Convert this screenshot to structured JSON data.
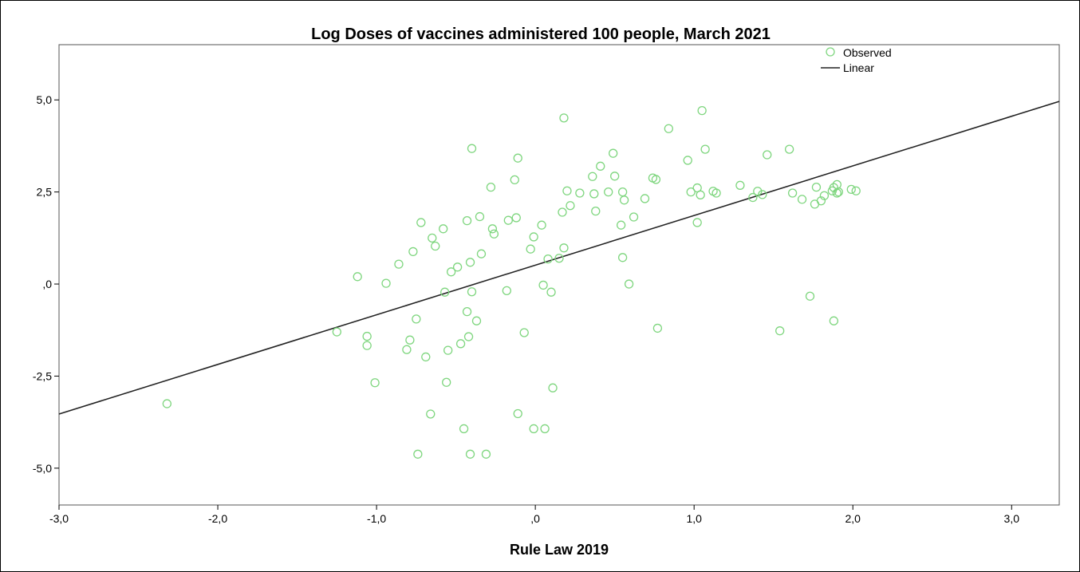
{
  "chart_data": {
    "type": "scatter",
    "title": "Log Doses of vaccines administered 100 people, March 2021",
    "xlabel": "Rule Law 2019",
    "ylabel": "",
    "xlim": [
      -3.0,
      3.3
    ],
    "ylim": [
      -6.0,
      6.5
    ],
    "x_ticks": [
      {
        "value": -3.0,
        "label": "-3,0"
      },
      {
        "value": -2.0,
        "label": "-2,0"
      },
      {
        "value": -1.0,
        "label": "-1,0"
      },
      {
        "value": 0.0,
        "label": ",0"
      },
      {
        "value": 1.0,
        "label": "1,0"
      },
      {
        "value": 2.0,
        "label": "2,0"
      },
      {
        "value": 3.0,
        "label": "3,0"
      }
    ],
    "y_ticks": [
      {
        "value": 5.0,
        "label": "5,0"
      },
      {
        "value": 2.5,
        "label": "2,5"
      },
      {
        "value": 0.0,
        "label": ",0"
      },
      {
        "value": -2.5,
        "label": "-2,5"
      },
      {
        "value": -5.0,
        "label": "-5,0"
      }
    ],
    "grid": false,
    "legend_position": "top-right",
    "series": [
      {
        "name": "Observed",
        "kind": "scatter",
        "color": "#7fd67f",
        "points": [
          [
            -2.32,
            -3.25
          ],
          [
            -1.25,
            -1.3
          ],
          [
            -1.12,
            0.2
          ],
          [
            -1.06,
            -1.42
          ],
          [
            -1.06,
            -1.67
          ],
          [
            -1.01,
            -2.68
          ],
          [
            -0.94,
            0.02
          ],
          [
            -0.86,
            0.54
          ],
          [
            -0.81,
            -1.78
          ],
          [
            -0.79,
            -1.52
          ],
          [
            -0.77,
            0.88
          ],
          [
            -0.75,
            -0.95
          ],
          [
            -0.74,
            -4.62
          ],
          [
            -0.72,
            1.67
          ],
          [
            -0.69,
            -1.98
          ],
          [
            -0.66,
            -3.53
          ],
          [
            -0.65,
            1.25
          ],
          [
            -0.63,
            1.03
          ],
          [
            -0.58,
            1.5
          ],
          [
            -0.57,
            -0.22
          ],
          [
            -0.56,
            -2.67
          ],
          [
            -0.55,
            -1.8
          ],
          [
            -0.53,
            0.33
          ],
          [
            -0.49,
            0.46
          ],
          [
            -0.47,
            -1.62
          ],
          [
            -0.45,
            -3.93
          ],
          [
            -0.43,
            1.72
          ],
          [
            -0.43,
            -0.75
          ],
          [
            -0.42,
            -1.43
          ],
          [
            -0.41,
            -4.62
          ],
          [
            -0.41,
            0.59
          ],
          [
            -0.4,
            3.68
          ],
          [
            -0.4,
            -0.21
          ],
          [
            -0.37,
            -1.0
          ],
          [
            -0.35,
            1.83
          ],
          [
            -0.34,
            0.82
          ],
          [
            -0.31,
            -4.62
          ],
          [
            -0.28,
            2.63
          ],
          [
            -0.27,
            1.5
          ],
          [
            -0.26,
            1.36
          ],
          [
            -0.18,
            -0.18
          ],
          [
            -0.17,
            1.73
          ],
          [
            -0.13,
            2.83
          ],
          [
            -0.12,
            1.8
          ],
          [
            -0.11,
            3.42
          ],
          [
            -0.11,
            -3.52
          ],
          [
            -0.07,
            -1.32
          ],
          [
            -0.03,
            0.95
          ],
          [
            -0.01,
            -3.93
          ],
          [
            -0.01,
            1.28
          ],
          [
            0.04,
            1.6
          ],
          [
            0.05,
            -0.03
          ],
          [
            0.06,
            -3.93
          ],
          [
            0.08,
            0.68
          ],
          [
            0.1,
            -0.22
          ],
          [
            0.11,
            -2.82
          ],
          [
            0.15,
            0.7
          ],
          [
            0.17,
            1.95
          ],
          [
            0.18,
            4.51
          ],
          [
            0.18,
            0.98
          ],
          [
            0.2,
            2.53
          ],
          [
            0.22,
            2.13
          ],
          [
            0.28,
            2.47
          ],
          [
            0.36,
            2.92
          ],
          [
            0.37,
            2.45
          ],
          [
            0.38,
            1.98
          ],
          [
            0.41,
            3.2
          ],
          [
            0.46,
            2.5
          ],
          [
            0.49,
            3.55
          ],
          [
            0.5,
            2.93
          ],
          [
            0.54,
            1.6
          ],
          [
            0.55,
            2.5
          ],
          [
            0.55,
            0.72
          ],
          [
            0.56,
            2.28
          ],
          [
            0.59,
            0.0
          ],
          [
            0.62,
            1.82
          ],
          [
            0.69,
            2.32
          ],
          [
            0.74,
            2.88
          ],
          [
            0.76,
            2.84
          ],
          [
            0.77,
            -1.2
          ],
          [
            0.84,
            4.22
          ],
          [
            0.96,
            3.36
          ],
          [
            0.98,
            2.5
          ],
          [
            1.02,
            1.67
          ],
          [
            1.02,
            2.61
          ],
          [
            1.04,
            2.42
          ],
          [
            1.05,
            4.71
          ],
          [
            1.07,
            3.66
          ],
          [
            1.12,
            2.52
          ],
          [
            1.14,
            2.47
          ],
          [
            1.29,
            2.68
          ],
          [
            1.37,
            2.35
          ],
          [
            1.4,
            2.52
          ],
          [
            1.43,
            2.43
          ],
          [
            1.46,
            3.51
          ],
          [
            1.54,
            -1.27
          ],
          [
            1.6,
            3.66
          ],
          [
            1.62,
            2.47
          ],
          [
            1.68,
            2.3
          ],
          [
            1.73,
            -0.33
          ],
          [
            1.76,
            2.17
          ],
          [
            1.77,
            2.63
          ],
          [
            1.8,
            2.26
          ],
          [
            1.82,
            2.4
          ],
          [
            1.87,
            2.53
          ],
          [
            1.88,
            2.62
          ],
          [
            1.88,
            -1.0
          ],
          [
            1.9,
            2.47
          ],
          [
            1.9,
            2.7
          ],
          [
            1.91,
            2.5
          ],
          [
            1.99,
            2.57
          ],
          [
            2.02,
            2.53
          ]
        ]
      },
      {
        "name": "Linear",
        "kind": "line",
        "color": "#222222",
        "points": [
          [
            -3.0,
            -3.53
          ],
          [
            3.3,
            4.96
          ]
        ]
      }
    ]
  }
}
